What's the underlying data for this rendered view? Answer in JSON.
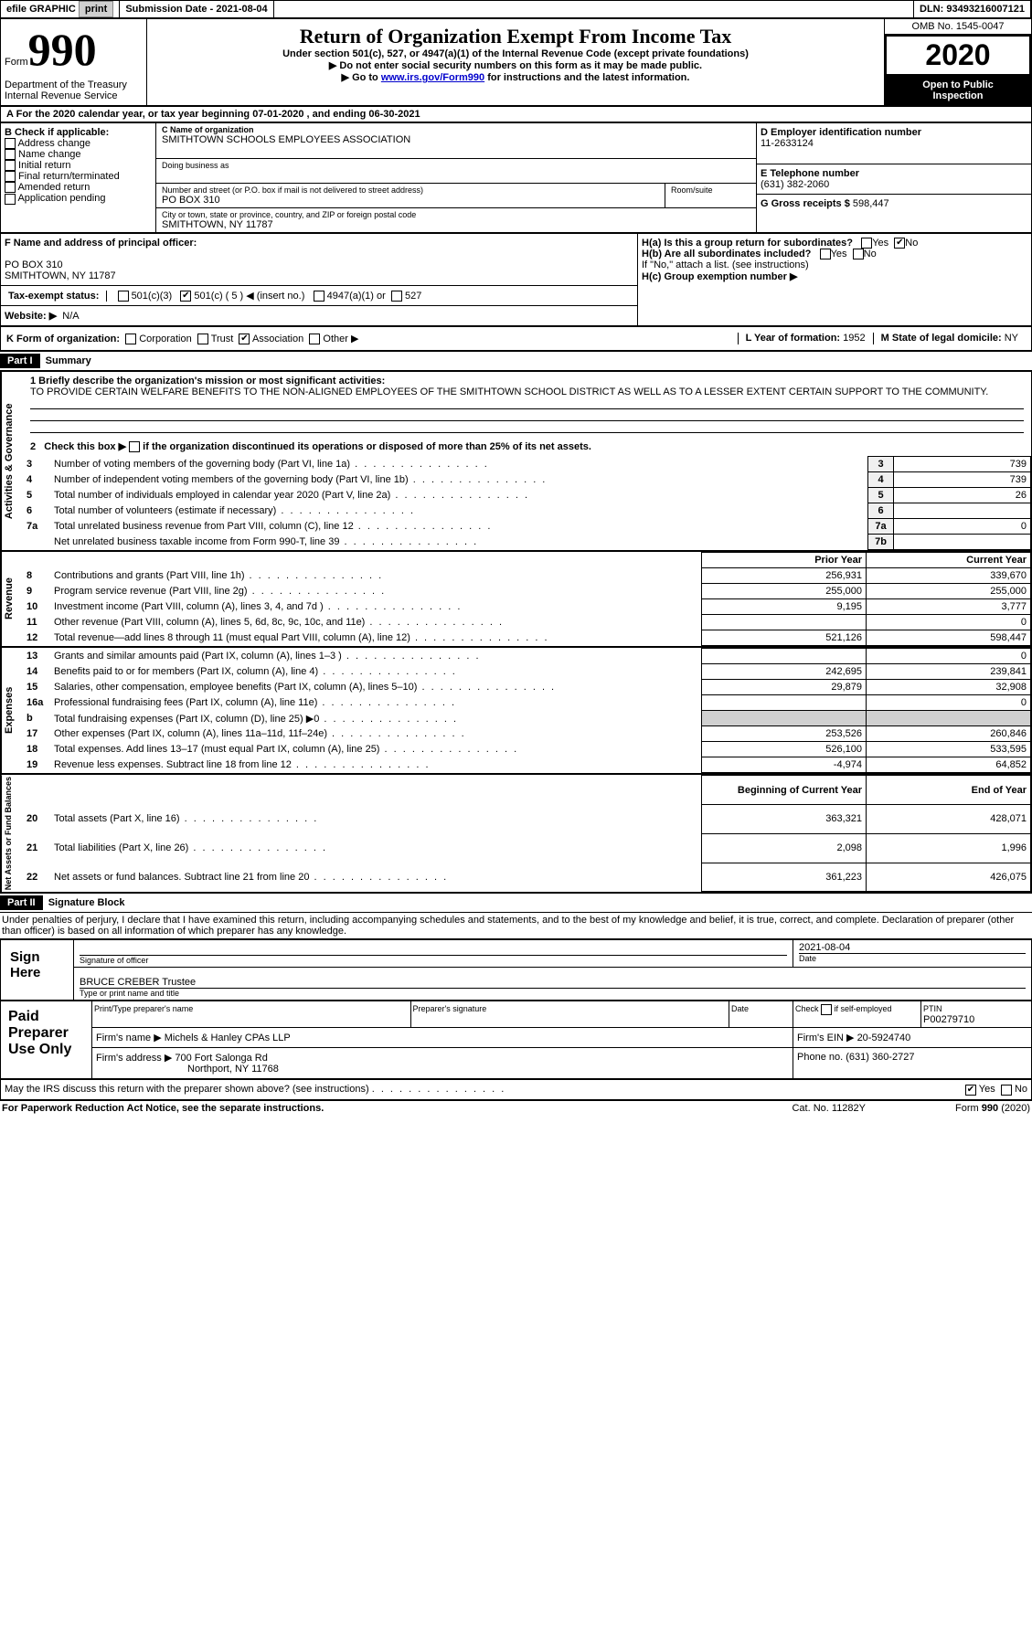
{
  "topbar": {
    "efile": "efile GRAPHIC",
    "print": "print",
    "subdate_label": "Submission Date - ",
    "subdate": "2021-08-04",
    "dln_label": "DLN: ",
    "dln": "93493216007121"
  },
  "header": {
    "form_word": "Form",
    "form_num": "990",
    "dept": "Department of the Treasury",
    "irs": "Internal Revenue Service",
    "title": "Return of Organization Exempt From Income Tax",
    "sub1": "Under section 501(c), 527, or 4947(a)(1) of the Internal Revenue Code (except private foundations)",
    "sub2": "▶ Do not enter social security numbers on this form as it may be made public.",
    "sub3_a": "▶ Go to ",
    "sub3_link": "www.irs.gov/Form990",
    "sub3_b": " for instructions and the latest information.",
    "omb": "OMB No. 1545-0047",
    "year": "2020",
    "open1": "Open to Public",
    "open2": "Inspection"
  },
  "line_a": "For the 2020 calendar year, or tax year beginning 07-01-2020   , and ending 06-30-2021",
  "boxB": {
    "label": "B Check if applicable:",
    "opts": [
      "Address change",
      "Name change",
      "Initial return",
      "Final return/terminated",
      "Amended return",
      "Application pending"
    ]
  },
  "boxC": {
    "name_label": "C Name of organization",
    "name": "SMITHTOWN SCHOOLS EMPLOYEES ASSOCIATION",
    "dba": "Doing business as",
    "street_label": "Number and street (or P.O. box if mail is not delivered to street address)",
    "room_label": "Room/suite",
    "street": "PO BOX 310",
    "city_label": "City or town, state or province, country, and ZIP or foreign postal code",
    "city": "SMITHTOWN, NY  11787"
  },
  "boxD": {
    "label": "D Employer identification number",
    "value": "11-2633124"
  },
  "boxE": {
    "label": "E Telephone number",
    "value": "(631) 382-2060"
  },
  "boxG": {
    "label": "G Gross receipts $ ",
    "value": "598,447"
  },
  "boxF": {
    "label": "F  Name and address of principal officer:",
    "line1": "PO BOX 310",
    "line2": "SMITHTOWN, NY  11787"
  },
  "boxH": {
    "ha": "H(a)  Is this a group return for subordinates?",
    "hb": "H(b)  Are all subordinates included?",
    "hnote": "If \"No,\" attach a list. (see instructions)",
    "hc": "H(c)  Group exemption number ▶",
    "yes": "Yes",
    "no": "No"
  },
  "taxI": {
    "label": "Tax-exempt status:",
    "o1": "501(c)(3)",
    "o2a": "501(c) ( 5 ) ",
    "o2b": "◀ (insert no.)",
    "o3": "4947(a)(1) or",
    "o4": "527"
  },
  "boxJ": {
    "label": "Website: ▶",
    "value": "N/A"
  },
  "boxK": {
    "label": "K Form of organization:",
    "opts": [
      "Corporation",
      "Trust",
      "Association",
      "Other ▶"
    ]
  },
  "boxL": {
    "label": "L Year of formation: ",
    "value": "1952"
  },
  "boxM": {
    "label": "M State of legal domicile: ",
    "value": "NY"
  },
  "part1": {
    "header": "Part I",
    "title": "Summary",
    "q1": "1  Briefly describe the organization's mission or most significant activities:",
    "mission": "TO PROVIDE CERTAIN WELFARE BENEFITS TO THE NON-ALIGNED EMPLOYEES OF THE SMITHTOWN SCHOOL DISTRICT AS WELL AS TO A LESSER EXTENT CERTAIN SUPPORT TO THE COMMUNITY.",
    "q2": "2   Check this box ▶        if the organization discontinued its operations or disposed of more than 25% of its net assets.",
    "sideA": "Activities & Governance",
    "sideR": "Revenue",
    "sideE": "Expenses",
    "sideN": "Net Assets or Fund Balances",
    "rows_ag": [
      {
        "n": "3",
        "t": "Number of voting members of the governing body (Part VI, line 1a)",
        "r": "3",
        "v": "739"
      },
      {
        "n": "4",
        "t": "Number of independent voting members of the governing body (Part VI, line 1b)",
        "r": "4",
        "v": "739"
      },
      {
        "n": "5",
        "t": "Total number of individuals employed in calendar year 2020 (Part V, line 2a)",
        "r": "5",
        "v": "26"
      },
      {
        "n": "6",
        "t": "Total number of volunteers (estimate if necessary)",
        "r": "6",
        "v": ""
      },
      {
        "n": "7a",
        "t": "Total unrelated business revenue from Part VIII, column (C), line 12",
        "r": "7a",
        "v": "0"
      },
      {
        "n": "",
        "t": "Net unrelated business taxable income from Form 990-T, line 39",
        "r": "7b",
        "v": ""
      }
    ],
    "col_prior": "Prior Year",
    "col_curr": "Current Year",
    "rows_rev": [
      {
        "n": "8",
        "t": "Contributions and grants (Part VIII, line 1h)",
        "p": "256,931",
        "c": "339,670"
      },
      {
        "n": "9",
        "t": "Program service revenue (Part VIII, line 2g)",
        "p": "255,000",
        "c": "255,000"
      },
      {
        "n": "10",
        "t": "Investment income (Part VIII, column (A), lines 3, 4, and 7d )",
        "p": "9,195",
        "c": "3,777"
      },
      {
        "n": "11",
        "t": "Other revenue (Part VIII, column (A), lines 5, 6d, 8c, 9c, 10c, and 11e)",
        "p": "",
        "c": "0"
      },
      {
        "n": "12",
        "t": "Total revenue—add lines 8 through 11 (must equal Part VIII, column (A), line 12)",
        "p": "521,126",
        "c": "598,447"
      }
    ],
    "rows_exp": [
      {
        "n": "13",
        "t": "Grants and similar amounts paid (Part IX, column (A), lines 1–3 )",
        "p": "",
        "c": "0"
      },
      {
        "n": "14",
        "t": "Benefits paid to or for members (Part IX, column (A), line 4)",
        "p": "242,695",
        "c": "239,841"
      },
      {
        "n": "15",
        "t": "Salaries, other compensation, employee benefits (Part IX, column (A), lines 5–10)",
        "p": "29,879",
        "c": "32,908"
      },
      {
        "n": "16a",
        "t": "Professional fundraising fees (Part IX, column (A), line 11e)",
        "p": "",
        "c": "0"
      },
      {
        "n": "b",
        "t": "Total fundraising expenses (Part IX, column (D), line 25) ▶0",
        "p": "GRAY",
        "c": "GRAY"
      },
      {
        "n": "17",
        "t": "Other expenses (Part IX, column (A), lines 11a–11d, 11f–24e)",
        "p": "253,526",
        "c": "260,846"
      },
      {
        "n": "18",
        "t": "Total expenses. Add lines 13–17 (must equal Part IX, column (A), line 25)",
        "p": "526,100",
        "c": "533,595"
      },
      {
        "n": "19",
        "t": "Revenue less expenses. Subtract line 18 from line 12",
        "p": "-4,974",
        "c": "64,852"
      }
    ],
    "col_beg": "Beginning of Current Year",
    "col_end": "End of Year",
    "rows_net": [
      {
        "n": "20",
        "t": "Total assets (Part X, line 16)",
        "p": "363,321",
        "c": "428,071"
      },
      {
        "n": "21",
        "t": "Total liabilities (Part X, line 26)",
        "p": "2,098",
        "c": "1,996"
      },
      {
        "n": "22",
        "t": "Net assets or fund balances. Subtract line 21 from line 20",
        "p": "361,223",
        "c": "426,075"
      }
    ]
  },
  "part2": {
    "header": "Part II",
    "title": "Signature Block",
    "decl": "Under penalties of perjury, I declare that I have examined this return, including accompanying schedules and statements, and to the best of my knowledge and belief, it is true, correct, and complete. Declaration of preparer (other than officer) is based on all information of which preparer has any knowledge.",
    "sign_here": "Sign Here",
    "sig_officer": "Signature of officer",
    "sig_date_lbl": "Date",
    "sig_date": "2021-08-04",
    "officer": "BRUCE CREBER  Trustee",
    "type_name": "Type or print name and title",
    "paid": "Paid Preparer Use Only",
    "prep_name_lbl": "Print/Type preparer's name",
    "prep_sig_lbl": "Preparer's signature",
    "date_lbl": "Date",
    "check_self": "Check        if self-employed",
    "ptin_lbl": "PTIN",
    "ptin": "P00279710",
    "firm_name_lbl": "Firm's name     ▶",
    "firm_name": "Michels & Hanley CPAs LLP",
    "firm_ein_lbl": "Firm's EIN ▶",
    "firm_ein": "20-5924740",
    "firm_addr_lbl": "Firm's address ▶",
    "firm_addr1": "700 Fort Salonga Rd",
    "firm_addr2": "Northport, NY  11768",
    "phone_lbl": "Phone no. ",
    "phone": "(631) 360-2727",
    "may_discuss": "May the IRS discuss this return with the preparer shown above? (see instructions)",
    "yes": "Yes",
    "no": "No"
  },
  "footer": {
    "pra": "For Paperwork Reduction Act Notice, see the separate instructions.",
    "cat": "Cat. No. 11282Y",
    "form": "Form 990 (2020)"
  }
}
